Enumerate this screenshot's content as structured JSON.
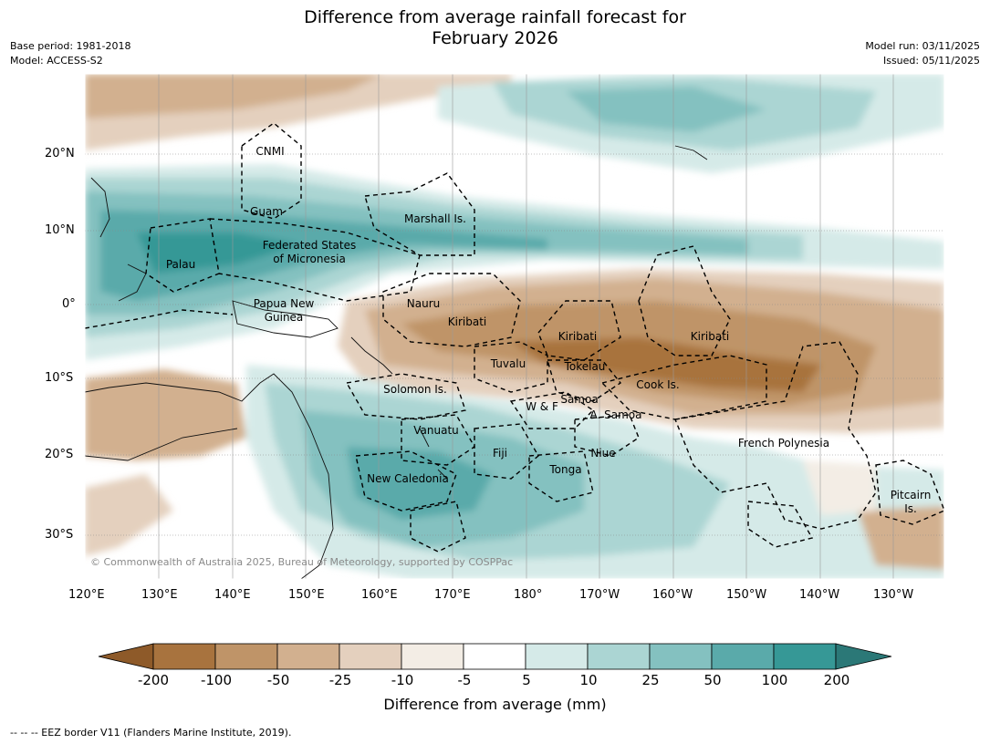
{
  "title_line1": "Difference from average rainfall forecast for",
  "title_line2": "February 2026",
  "meta_left": {
    "base_period": "Base period: 1981-2018",
    "model": "Model: ACCESS-S2"
  },
  "meta_right": {
    "model_run": "Model run: 03/11/2025",
    "issued": "Issued: 05/11/2025"
  },
  "axes": {
    "lon_ticks": [
      "120°E",
      "130°E",
      "140°E",
      "150°E",
      "160°E",
      "170°E",
      "180°",
      "170°W",
      "160°W",
      "150°W",
      "140°W",
      "130°W"
    ],
    "lat_ticks": [
      "20°N",
      "10°N",
      "0°",
      "10°S",
      "20°S",
      "30°S"
    ]
  },
  "places": {
    "cnmi": "CNMI",
    "guam": "Guam",
    "marshall": "Marshall Is.",
    "fsm1": "Federated States",
    "fsm2": "of Micronesia",
    "palau": "Palau",
    "png1": "Papua New",
    "png2": "Guinea",
    "nauru": "Nauru",
    "kiribati_w": "Kiribati",
    "kiribati_c": "Kiribati",
    "kiribati_e": "Kiribati",
    "tuvalu": "Tuvalu",
    "tokelau": "Tokelau",
    "cook": "Cook Is.",
    "solomon": "Solomon Is.",
    "samoa": "Samoa",
    "wf": "W & F",
    "asamoa": "A. Samoa",
    "vanuatu": "Vanuatu",
    "fiji": "Fiji",
    "niue": "Niue",
    "tonga": "Tonga",
    "newcal": "New Caledonia",
    "frenchpoly": "French Polynesia",
    "pitcairn1": "Pitcairn",
    "pitcairn2": "Is."
  },
  "copyright": "© Commonwealth of Australia 2025, Bureau of Meteorology, supported by COSPPac",
  "colorbar": {
    "labels": [
      "-200",
      "-100",
      "-50",
      "-25",
      "-10",
      "-5",
      "5",
      "10",
      "25",
      "50",
      "100",
      "200"
    ],
    "colors": [
      "#8e5a29",
      "#a8733e",
      "#bf9468",
      "#d2b08f",
      "#e4d0be",
      "#f3ede5",
      "#ffffff",
      "#d5eae8",
      "#abd5d3",
      "#84c1c0",
      "#5aaaaa",
      "#369896",
      "#2b7877"
    ],
    "title": "Difference from average (mm)"
  },
  "footer": "--  --  -- EEZ border V11 (Flanders Marine Institute, 2019)."
}
